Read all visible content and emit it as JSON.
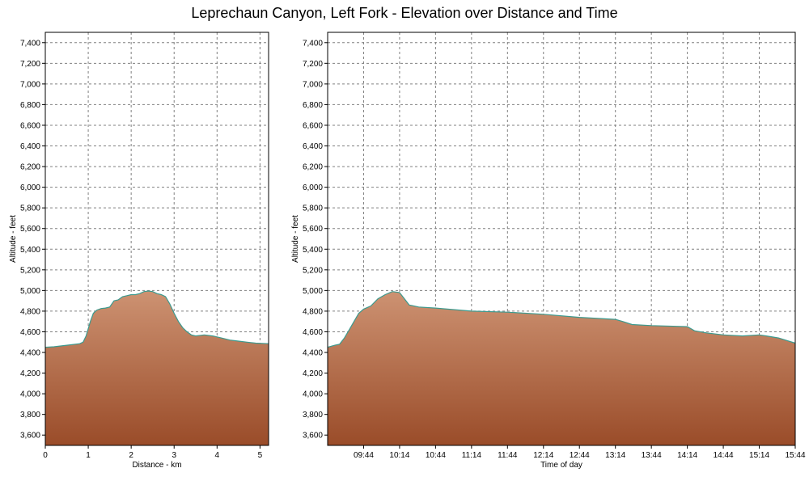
{
  "title": "Leprechaun Canyon, Left Fork - Elevation over Distance and Time",
  "chart_data": [
    {
      "type": "area",
      "xlabel": "Distance - km",
      "ylabel": "Altitude - feet",
      "xlim": [
        0,
        5.2
      ],
      "ylim": [
        3500,
        7500
      ],
      "x_ticks": [
        0,
        1,
        2,
        3,
        4,
        5
      ],
      "y_ticks": [
        3600,
        3800,
        4000,
        4200,
        4400,
        4600,
        4800,
        5000,
        5200,
        5400,
        5600,
        5800,
        6000,
        6200,
        6400,
        6600,
        6800,
        7000,
        7200,
        7400
      ],
      "grid": true,
      "fill_colors": [
        "#cd9272",
        "#9a4c29"
      ],
      "line_color": "#3c9a8e",
      "series": [
        {
          "x": [
            0,
            0.2,
            0.5,
            0.8,
            0.88,
            0.95,
            1.0,
            1.05,
            1.12,
            1.2,
            1.3,
            1.4,
            1.5,
            1.6,
            1.7,
            1.8,
            1.9,
            2.0,
            2.1,
            2.2,
            2.3,
            2.4,
            2.5,
            2.6,
            2.7,
            2.8,
            2.9,
            3.0,
            3.1,
            3.2,
            3.3,
            3.4,
            3.5,
            3.7,
            3.9,
            4.1,
            4.3,
            4.5,
            4.7,
            4.9,
            5.2
          ],
          "y": [
            4450,
            4455,
            4470,
            4485,
            4500,
            4560,
            4630,
            4700,
            4780,
            4810,
            4825,
            4830,
            4840,
            4900,
            4910,
            4940,
            4950,
            4960,
            4960,
            4970,
            4990,
            4995,
            4990,
            4970,
            4960,
            4940,
            4870,
            4780,
            4700,
            4640,
            4600,
            4570,
            4560,
            4570,
            4560,
            4540,
            4520,
            4510,
            4500,
            4490,
            4485
          ]
        }
      ]
    },
    {
      "type": "area",
      "xlabel": "Time of day",
      "ylabel": "Altitude - feet",
      "xlim": [
        "09:14",
        "15:44"
      ],
      "ylim": [
        3500,
        7500
      ],
      "x_ticks": [
        "09:44",
        "10:14",
        "10:44",
        "11:14",
        "11:44",
        "12:14",
        "12:44",
        "13:14",
        "13:44",
        "14:14",
        "14:44",
        "15:14",
        "15:44"
      ],
      "y_ticks": [
        3600,
        3800,
        4000,
        4200,
        4400,
        4600,
        4800,
        5000,
        5200,
        5400,
        5600,
        5800,
        6000,
        6200,
        6400,
        6600,
        6800,
        7000,
        7200,
        7400
      ],
      "grid": true,
      "fill_colors": [
        "#cd9272",
        "#9a4c29"
      ],
      "line_color": "#3c9a8e",
      "series": [
        {
          "x": [
            "09:14",
            "09:20",
            "09:24",
            "09:28",
            "09:32",
            "09:36",
            "09:40",
            "09:44",
            "09:50",
            "09:56",
            "10:02",
            "10:08",
            "10:14",
            "10:18",
            "10:22",
            "10:30",
            "10:44",
            "11:14",
            "11:44",
            "12:14",
            "12:44",
            "13:14",
            "13:20",
            "13:28",
            "13:44",
            "14:14",
            "14:20",
            "14:30",
            "14:44",
            "15:00",
            "15:14",
            "15:20",
            "15:30",
            "15:44"
          ],
          "y": [
            4450,
            4470,
            4480,
            4540,
            4620,
            4700,
            4780,
            4820,
            4850,
            4920,
            4960,
            4990,
            4980,
            4920,
            4860,
            4840,
            4830,
            4800,
            4790,
            4770,
            4740,
            4720,
            4700,
            4670,
            4660,
            4650,
            4610,
            4590,
            4570,
            4560,
            4570,
            4560,
            4540,
            4490
          ]
        }
      ]
    }
  ]
}
